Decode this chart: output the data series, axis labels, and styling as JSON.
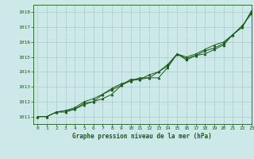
{
  "title": "Graphe pression niveau de la mer (hPa)",
  "bg_color": "#cce8e8",
  "plot_bg_color": "#cce8e8",
  "grid_color": "#aacccc",
  "line_color": "#1a5c1a",
  "xlim": [
    -0.5,
    23
  ],
  "ylim": [
    1010.5,
    1018.5
  ],
  "xticks": [
    0,
    1,
    2,
    3,
    4,
    5,
    6,
    7,
    8,
    9,
    10,
    11,
    12,
    13,
    14,
    15,
    16,
    17,
    18,
    19,
    20,
    21,
    22,
    23
  ],
  "yticks": [
    1011,
    1012,
    1013,
    1014,
    1015,
    1016,
    1017,
    1018
  ],
  "series1": [
    1011.0,
    1011.0,
    1011.3,
    1011.3,
    1011.5,
    1011.8,
    1012.0,
    1012.5,
    1012.8,
    1013.1,
    1013.4,
    1013.5,
    1013.6,
    1013.6,
    1014.3,
    1015.2,
    1014.8,
    1015.1,
    1015.2,
    1015.5,
    1015.8,
    1016.5,
    1017.1,
    1017.9
  ],
  "series2": [
    1011.0,
    1011.0,
    1011.3,
    1011.4,
    1011.5,
    1011.9,
    1012.0,
    1012.2,
    1012.5,
    1013.1,
    1013.5,
    1013.5,
    1013.8,
    1014.0,
    1014.5,
    1015.2,
    1014.9,
    1015.1,
    1015.4,
    1015.6,
    1015.9,
    1016.5,
    1017.0,
    1018.0
  ],
  "series3": [
    1011.0,
    1011.0,
    1011.3,
    1011.4,
    1011.6,
    1012.0,
    1012.2,
    1012.5,
    1012.9,
    1013.2,
    1013.4,
    1013.6,
    1013.6,
    1014.0,
    1014.4,
    1015.2,
    1015.0,
    1015.2,
    1015.5,
    1015.8,
    1016.0,
    1016.5,
    1017.0,
    1018.1
  ],
  "title_fontsize": 5.5,
  "tick_fontsize": 4.5
}
